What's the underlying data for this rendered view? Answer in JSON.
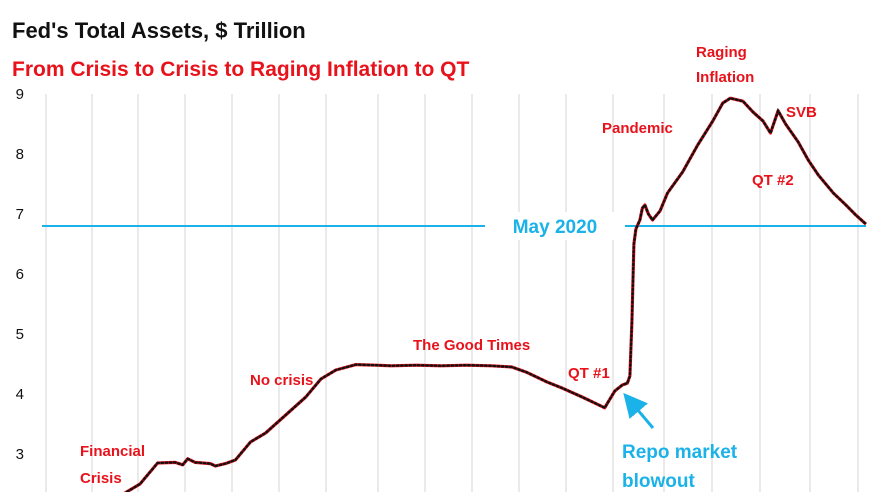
{
  "chart_data": {
    "type": "line",
    "title": "Fed's Total Assets, $ Trillion",
    "subtitle": "From Crisis to Crisis to Raging Inflation to QT",
    "xlabel": "",
    "ylabel": "",
    "ylim": [
      2.5,
      9
    ],
    "y_ticks": [
      "3",
      "4",
      "5",
      "6",
      "7",
      "8",
      "9"
    ],
    "grid": "vertical lines",
    "colors": {
      "line": "#e8121b",
      "dots": "#111111",
      "reference": "#1ab2e8",
      "annotation": "#e8121b",
      "callout": "#1ab2e8"
    },
    "series": [
      {
        "points": [
          [
            2008.85,
            2.05
          ],
          [
            2009.0,
            2.18
          ],
          [
            2009.5,
            2.2
          ],
          [
            2010.0,
            2.25
          ],
          [
            2010.2,
            2.35
          ],
          [
            2010.5,
            2.5
          ],
          [
            2010.85,
            2.85
          ],
          [
            2011.2,
            2.86
          ],
          [
            2011.35,
            2.82
          ],
          [
            2011.45,
            2.92
          ],
          [
            2011.6,
            2.86
          ],
          [
            2011.9,
            2.84
          ],
          [
            2012.0,
            2.8
          ],
          [
            2012.2,
            2.84
          ],
          [
            2012.4,
            2.9
          ],
          [
            2012.7,
            3.2
          ],
          [
            2013.0,
            3.35
          ],
          [
            2013.4,
            3.65
          ],
          [
            2013.8,
            3.95
          ],
          [
            2014.1,
            4.25
          ],
          [
            2014.4,
            4.4
          ],
          [
            2014.8,
            4.49
          ],
          [
            2015.2,
            4.48
          ],
          [
            2015.5,
            4.47
          ],
          [
            2016.0,
            4.48
          ],
          [
            2016.5,
            4.47
          ],
          [
            2017.0,
            4.48
          ],
          [
            2017.5,
            4.47
          ],
          [
            2017.9,
            4.45
          ],
          [
            2018.2,
            4.36
          ],
          [
            2018.6,
            4.2
          ],
          [
            2018.9,
            4.1
          ],
          [
            2019.3,
            3.95
          ],
          [
            2019.6,
            3.83
          ],
          [
            2019.75,
            3.77
          ],
          [
            2019.8,
            3.84
          ],
          [
            2019.95,
            4.05
          ],
          [
            2020.1,
            4.15
          ],
          [
            2020.2,
            4.18
          ],
          [
            2020.25,
            4.3
          ],
          [
            2020.29,
            5.2
          ],
          [
            2020.33,
            6.5
          ],
          [
            2020.37,
            6.75
          ],
          [
            2020.45,
            6.9
          ],
          [
            2020.5,
            7.1
          ],
          [
            2020.55,
            7.15
          ],
          [
            2020.62,
            7.0
          ],
          [
            2020.7,
            6.9
          ],
          [
            2020.85,
            7.05
          ],
          [
            2021.0,
            7.35
          ],
          [
            2021.3,
            7.7
          ],
          [
            2021.6,
            8.15
          ],
          [
            2021.9,
            8.55
          ],
          [
            2022.1,
            8.85
          ],
          [
            2022.25,
            8.93
          ],
          [
            2022.5,
            8.88
          ],
          [
            2022.7,
            8.7
          ],
          [
            2022.9,
            8.55
          ],
          [
            2023.05,
            8.35
          ],
          [
            2023.2,
            8.72
          ],
          [
            2023.35,
            8.5
          ],
          [
            2023.6,
            8.2
          ],
          [
            2023.8,
            7.9
          ],
          [
            2024.0,
            7.65
          ],
          [
            2024.3,
            7.35
          ],
          [
            2024.55,
            7.15
          ],
          [
            2024.75,
            6.98
          ],
          [
            2024.95,
            6.83
          ]
        ]
      }
    ],
    "reference_line": {
      "y": 6.8,
      "label": "May 2020"
    },
    "annotations": [
      {
        "text": "Financial",
        "x": 2009.2,
        "y": 3.0
      },
      {
        "text": "Crisis",
        "x": 2009.2,
        "y": 2.7
      },
      {
        "text": "No crisis",
        "x": 2013.35,
        "y": 4.2
      },
      {
        "text": "The Good Times",
        "x": 2017.2,
        "y": 4.75
      },
      {
        "text": "QT #1",
        "x": 2019.55,
        "y": 4.3
      },
      {
        "text": "Pandemic",
        "x": 2021.05,
        "y": 8.35
      },
      {
        "text": "Raging",
        "x": 2022.1,
        "y": 9.62
      },
      {
        "text": "Inflation",
        "x": 2022.2,
        "y": 9.25
      },
      {
        "text": "SVB",
        "x": 2023.8,
        "y": 8.62
      },
      {
        "text": "QT #2",
        "x": 2023.75,
        "y": 7.5
      }
    ],
    "callout": {
      "lines": [
        "Repo market",
        "blowout"
      ],
      "arrow_from": [
        2020.45,
        3.3
      ],
      "arrow_to": [
        2020.22,
        3.92
      ]
    }
  }
}
